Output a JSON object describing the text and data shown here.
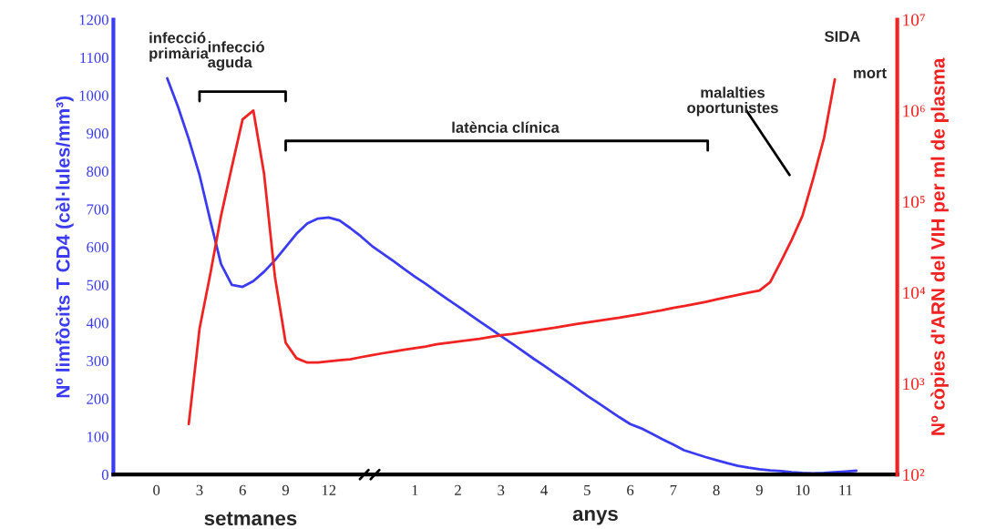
{
  "chart_data": {
    "type": "line",
    "ylabel": "Nº limfòcits T CD4 (cèl·lules/mm³)",
    "y2label": "Nº còpies d'ARN del VIH per ml de plasma",
    "categories": [
      "0",
      null,
      null,
      null,
      "3",
      null,
      null,
      null,
      "6",
      null,
      null,
      null,
      "9",
      null,
      null,
      null,
      "12",
      null,
      null,
      null,
      null,
      null,
      null,
      null,
      "1",
      null,
      null,
      null,
      "2",
      null,
      null,
      null,
      "3",
      null,
      null,
      null,
      "4",
      null,
      null,
      null,
      "5",
      null,
      null,
      null,
      "6",
      null,
      null,
      null,
      "7",
      null,
      null,
      null,
      "8",
      null,
      null,
      null,
      "9",
      null,
      null,
      null,
      "10",
      null,
      null,
      null,
      "11",
      null,
      null,
      null
    ],
    "ylim": [
      0,
      1200
    ],
    "yticks": [
      0,
      100,
      200,
      300,
      400,
      500,
      600,
      700,
      800,
      900,
      1000,
      1100,
      1200
    ],
    "y2lim": [
      100,
      10000000
    ],
    "y2ticks": [
      {
        "value": 100,
        "label": "10²"
      },
      {
        "value": 1000,
        "label": "10³"
      },
      {
        "value": 10000,
        "label": "10⁴"
      },
      {
        "value": 100000,
        "label": "10⁵"
      },
      {
        "value": 1000000,
        "label": "10⁶"
      },
      {
        "value": 10000000,
        "label": "10⁷"
      }
    ],
    "log": "y2",
    "grid": false,
    "legend": false,
    "marker": "none",
    "line_style": "solid",
    "series": [
      {
        "color": "#3b3bf2",
        "axis": "y",
        "values": [
          null,
          1045,
          970,
          885,
          790,
          670,
          555,
          500,
          495,
          510,
          535,
          565,
          600,
          635,
          662,
          675,
          678,
          670,
          650,
          628,
          603,
          583,
          563,
          542,
          522,
          503,
          483,
          463,
          444,
          424,
          404,
          385,
          365,
          346,
          326,
          306,
          287,
          267,
          248,
          228,
          208,
          189,
          170,
          151,
          133,
          122,
          108,
          93,
          79,
          64,
          55,
          46,
          38,
          30,
          23,
          18,
          14,
          11,
          9,
          6,
          4,
          3,
          4,
          6,
          8,
          10,
          null,
          null
        ]
      },
      {
        "color": "#f02222",
        "axis": "y2",
        "values": [
          null,
          null,
          null,
          360,
          4000,
          16000,
          70000,
          240000,
          800000,
          1000000,
          200000,
          15000,
          2800,
          1900,
          1700,
          1700,
          1750,
          1800,
          1850,
          1950,
          2050,
          2150,
          2250,
          2350,
          2450,
          2550,
          2700,
          2800,
          2900,
          3000,
          3100,
          3250,
          3400,
          3500,
          3650,
          3800,
          3950,
          4100,
          4300,
          4500,
          4700,
          4900,
          5100,
          5300,
          5550,
          5800,
          6100,
          6400,
          6800,
          7100,
          7500,
          7900,
          8400,
          8900,
          9400,
          10000,
          10500,
          13000,
          22000,
          38000,
          70000,
          180000,
          500000,
          2200000,
          null,
          null,
          null,
          null
        ]
      }
    ],
    "annotations": [
      "infecció\nprimària",
      "infecció\naguda",
      "latència clínica",
      "malalties\noportunistes",
      "SIDA",
      "mort",
      "setmanes",
      "anys"
    ]
  }
}
